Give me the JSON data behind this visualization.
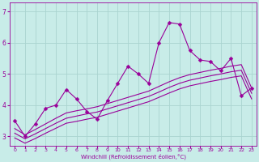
{
  "xlabel": "Windchill (Refroidissement éolien,°C)",
  "ylabel": "",
  "bg_color": "#c8ece8",
  "grid_color": "#aad4d0",
  "line_color": "#990099",
  "xlim": [
    -0.5,
    23.5
  ],
  "ylim": [
    2.7,
    7.3
  ],
  "xticks": [
    0,
    1,
    2,
    3,
    4,
    5,
    6,
    7,
    8,
    9,
    10,
    11,
    12,
    13,
    14,
    15,
    16,
    17,
    18,
    19,
    20,
    21,
    22,
    23
  ],
  "yticks": [
    3,
    4,
    5,
    6,
    7
  ],
  "main_x": [
    0,
    1,
    2,
    3,
    4,
    5,
    6,
    7,
    8,
    9,
    10,
    11,
    12,
    13,
    14,
    15,
    16,
    17,
    18,
    19,
    20,
    21,
    22,
    23
  ],
  "main_y": [
    3.5,
    3.0,
    3.4,
    3.9,
    4.0,
    4.5,
    4.2,
    3.8,
    3.55,
    4.15,
    4.7,
    5.25,
    5.0,
    4.7,
    6.0,
    6.65,
    6.6,
    5.75,
    5.45,
    5.4,
    5.1,
    5.5,
    4.3,
    4.55
  ],
  "line2_x": [
    0,
    1,
    2,
    3,
    4,
    5,
    6,
    7,
    8,
    9,
    10,
    11,
    12,
    13,
    14,
    15,
    16,
    17,
    18,
    19,
    20,
    21,
    22,
    23
  ],
  "line2_y": [
    3.25,
    3.05,
    3.22,
    3.4,
    3.58,
    3.75,
    3.82,
    3.88,
    3.95,
    4.05,
    4.15,
    4.25,
    4.35,
    4.45,
    4.6,
    4.75,
    4.88,
    4.98,
    5.05,
    5.12,
    5.18,
    5.25,
    5.3,
    4.55
  ],
  "line3_x": [
    0,
    1,
    2,
    3,
    4,
    5,
    6,
    7,
    8,
    9,
    10,
    11,
    12,
    13,
    14,
    15,
    16,
    17,
    18,
    19,
    20,
    21,
    22,
    23
  ],
  "line3_y": [
    3.1,
    2.92,
    3.08,
    3.25,
    3.42,
    3.58,
    3.65,
    3.72,
    3.78,
    3.88,
    3.98,
    4.08,
    4.18,
    4.28,
    4.42,
    4.57,
    4.7,
    4.8,
    4.87,
    4.94,
    5.0,
    5.07,
    5.12,
    4.38
  ],
  "line4_x": [
    0,
    1,
    2,
    3,
    4,
    5,
    6,
    7,
    8,
    9,
    10,
    11,
    12,
    13,
    14,
    15,
    16,
    17,
    18,
    19,
    20,
    21,
    22,
    23
  ],
  "line4_y": [
    2.95,
    2.78,
    2.93,
    3.1,
    3.26,
    3.42,
    3.48,
    3.55,
    3.61,
    3.71,
    3.81,
    3.91,
    4.01,
    4.11,
    4.25,
    4.39,
    4.52,
    4.62,
    4.69,
    4.76,
    4.82,
    4.89,
    4.94,
    4.2
  ]
}
